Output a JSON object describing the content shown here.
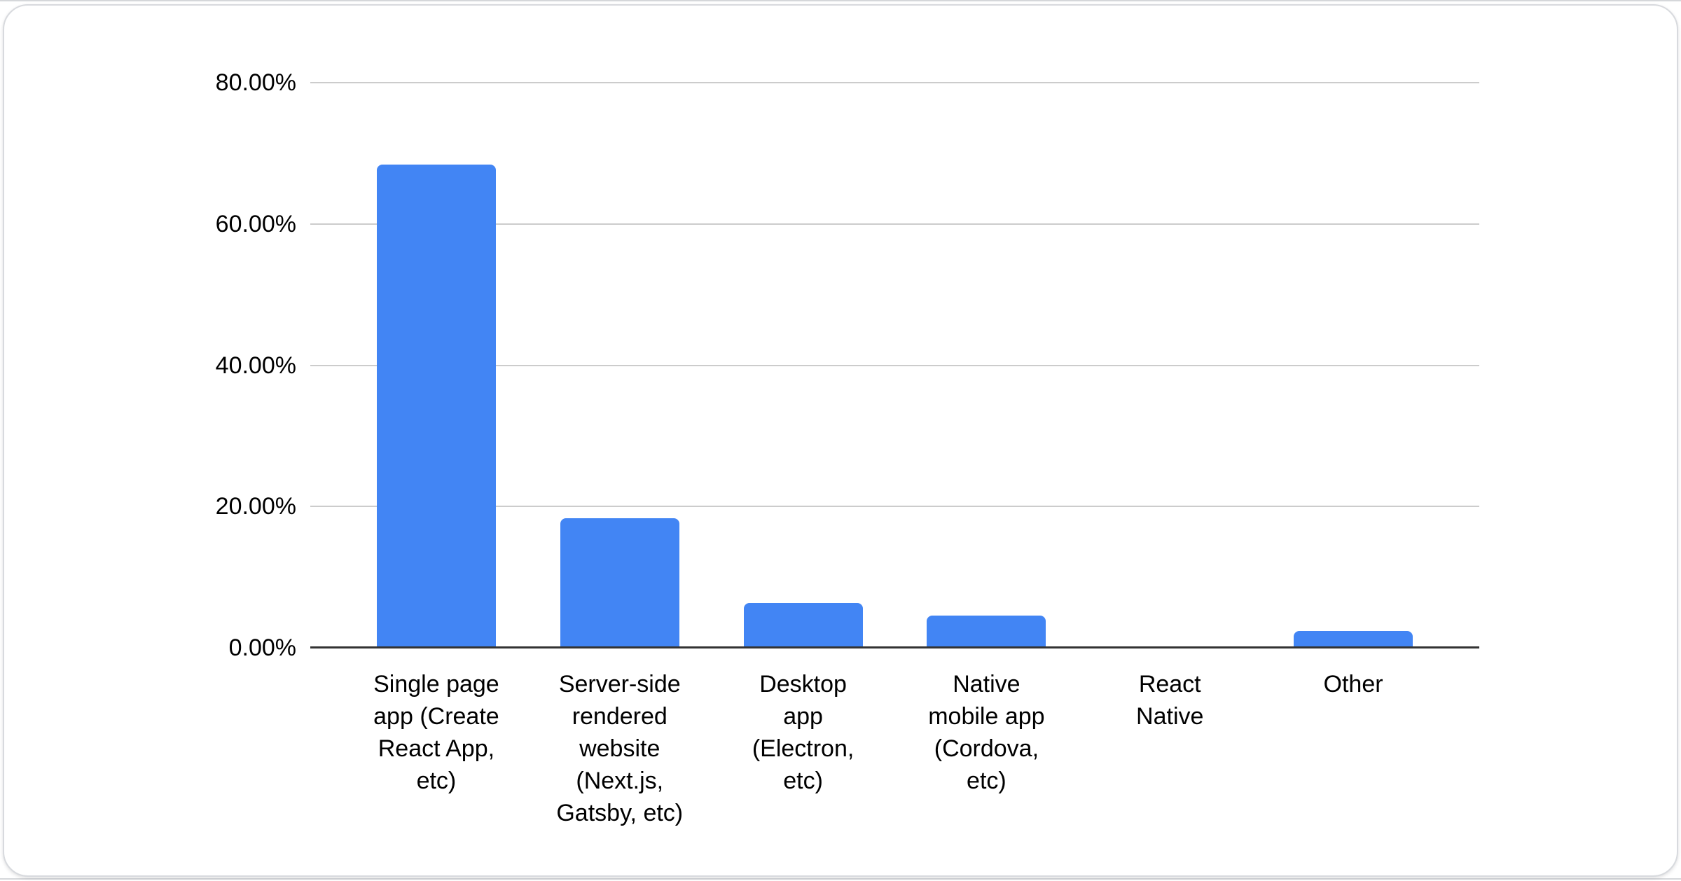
{
  "chart_data": {
    "type": "bar",
    "title": "",
    "xlabel": "",
    "ylabel": "",
    "categories": [
      "Single page app (Create React App, etc)",
      "Server-side rendered website (Next.js, Gatsby, etc)",
      "Desktop app (Electron, etc)",
      "Native mobile app (Cordova, etc)",
      "React Native",
      "Other"
    ],
    "categories_wrapped": [
      [
        "Single page",
        "app (Create",
        "React App,",
        "etc)"
      ],
      [
        "Server-side",
        "rendered",
        "website",
        "(Next.js,",
        "Gatsby, etc)"
      ],
      [
        "Desktop",
        "app",
        "(Electron,",
        "etc)"
      ],
      [
        "Native",
        "mobile app",
        "(Cordova,",
        "etc)"
      ],
      [
        "React",
        "Native"
      ],
      [
        "Other"
      ]
    ],
    "values": [
      68.4,
      18.3,
      6.3,
      4.6,
      0,
      2.4
    ],
    "unit": "%",
    "ylim": [
      0,
      80
    ],
    "yticks": [
      {
        "value": 0,
        "label": "0.00%"
      },
      {
        "value": 20,
        "label": "20.00%"
      },
      {
        "value": 40,
        "label": "40.00%"
      },
      {
        "value": 60,
        "label": "60.00%"
      },
      {
        "value": 80,
        "label": "80.00%"
      }
    ],
    "grid": true,
    "legend_position": "none",
    "colors": {
      "bar": "#4285f4",
      "gridline": "#cccccc",
      "axis_line": "#333333",
      "label_text": "#000000",
      "card_border": "#d8dade",
      "background": "#ffffff"
    }
  }
}
